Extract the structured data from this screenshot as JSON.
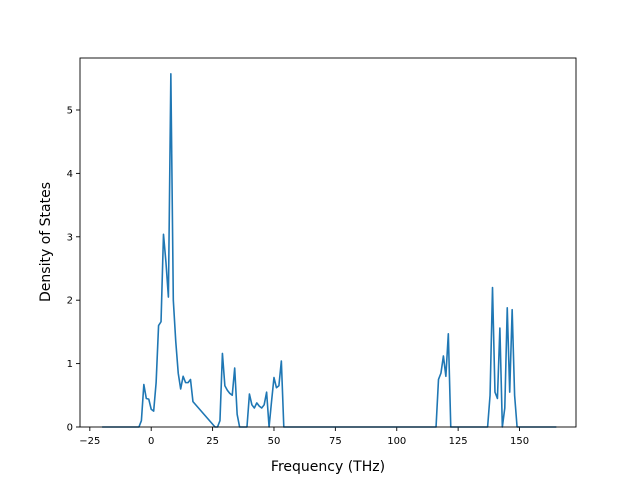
{
  "chart_data": {
    "type": "line",
    "title": "",
    "xlabel": "Frequency (THz)",
    "ylabel": "Density of States",
    "xlim": [
      -29,
      173
    ],
    "ylim": [
      0,
      5.82
    ],
    "xticks": [
      -25,
      0,
      25,
      50,
      75,
      100,
      125,
      150
    ],
    "yticks": [
      0,
      1,
      2,
      3,
      4,
      5
    ],
    "grid": false,
    "legend": "none",
    "line_color": "#1f77b4",
    "series": [
      {
        "x": [
          -20,
          -5,
          -4,
          -3,
          -2,
          -1,
          0,
          1,
          2,
          3,
          4,
          5,
          6,
          7,
          8,
          9,
          10,
          11,
          12,
          13,
          14,
          15,
          16,
          17,
          26,
          27,
          28,
          29,
          30,
          31,
          32,
          33,
          34,
          35,
          36,
          37,
          39,
          40,
          41,
          42,
          43,
          44,
          45,
          46,
          47,
          48,
          49,
          50,
          51,
          52,
          53,
          54,
          55,
          56,
          115,
          116,
          117,
          118,
          119,
          120,
          121,
          122,
          137,
          138,
          139,
          140,
          141,
          142,
          143,
          144,
          145,
          146,
          147,
          148,
          149,
          150,
          165
        ],
        "y": [
          0,
          0,
          0.1,
          0.67,
          0.45,
          0.44,
          0.28,
          0.25,
          0.7,
          1.6,
          1.66,
          3.04,
          2.6,
          2.05,
          5.57,
          2.0,
          1.35,
          0.85,
          0.6,
          0.8,
          0.7,
          0.7,
          0.75,
          0.4,
          0,
          0,
          0.1,
          1.16,
          0.65,
          0.58,
          0.53,
          0.5,
          0.93,
          0.2,
          0,
          0,
          0,
          0.52,
          0.35,
          0.3,
          0.38,
          0.33,
          0.3,
          0.35,
          0.55,
          0,
          0.4,
          0.78,
          0.62,
          0.65,
          1.04,
          0,
          0,
          0,
          0,
          0,
          0.75,
          0.85,
          1.12,
          0.8,
          1.47,
          0,
          0,
          0.5,
          2.2,
          0.55,
          0.45,
          1.56,
          0,
          0.3,
          1.88,
          0.55,
          1.85,
          0.5,
          0,
          0,
          0
        ]
      }
    ]
  }
}
